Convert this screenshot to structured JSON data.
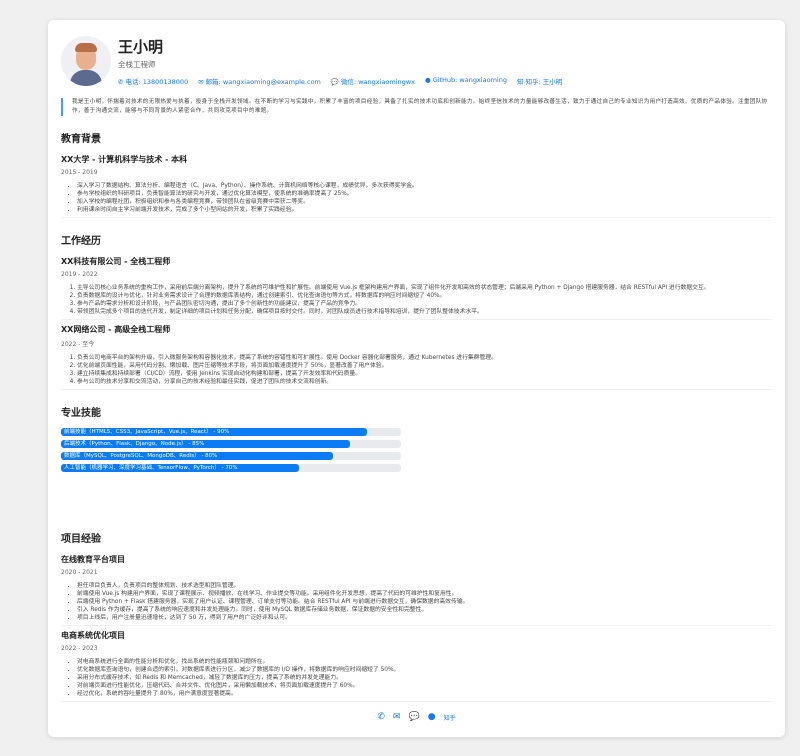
{
  "profile": {
    "name": "王小明",
    "title": "全栈工程师",
    "contacts": [
      {
        "icon": "phone-icon",
        "label": "电话: 13800138000"
      },
      {
        "icon": "email-icon",
        "label": "邮箱: wangxiaoming@example.com"
      },
      {
        "icon": "wechat-icon",
        "label": "微信: wangxiaomingwx"
      },
      {
        "icon": "github-icon",
        "label": "GitHub: wangxiaoming"
      },
      {
        "icon": "zhihu-icon",
        "label": "知乎: 王小明"
      }
    ],
    "summary": "我是王小明，怀揣着对技术的无限热爱与执着，投身于全栈开发领域。在不断的学习与实践中，积累了丰富的项目经验，具备了扎实的技术功底和创新能力。始终坚信技术的力量能够改善生活，致力于通过自己的专业知识为用户打造高效、优质的产品体验。注重团队协作，善于沟通交流，能够与不同背景的人紧密合作，共同攻克项目中的难题。"
  },
  "education": {
    "heading": "教育背景",
    "items": [
      {
        "title": "XX大学 - 计算机科学与技术 - 本科",
        "date": "2015 - 2019",
        "points": [
          "深入学习了数据结构、算法分析、编程语言（C、Java、Python）、操作系统、计算机网络等核心课程，成绩优异，多次获得奖学金。",
          "参与学校组织的科研项目，负责智能算法的研究与开发，通过优化算法模型，使系统的准确率提高了 25%。",
          "加入学校的编程社团，积极组织和参与各类编程竞赛，带领团队在省级竞赛中荣获二等奖。",
          "利用课余时间自主学习前端开发技术，完成了多个小型网站的开发，积累了实践经验。"
        ]
      }
    ]
  },
  "work": {
    "heading": "工作经历",
    "items": [
      {
        "title": "XX科技有限公司 - 全栈工程师",
        "date": "2019 - 2022",
        "points": [
          "主导公司核心业务系统的重构工作，采用前后端分离架构，提升了系统的可维护性和扩展性。前端使用 Vue.js 框架构建用户界面，实现了组件化开发和高效的状态管理；后端采用 Python + Django 搭建服务器，结合 RESTful API 进行数据交互。",
          "负责数据库的设计与优化，针对业务需求设计了合理的数据库表结构，通过创建索引、优化查询语句等方式，将数据库的响应时间缩短了 40%。",
          "参与产品的需求分析和设计阶段，与产品团队密切沟通，提出了多个创新性的功能建议，提高了产品的竞争力。",
          "带领团队完成多个项目的迭代开发，制定详细的项目计划和任务分配，确保项目按时交付。同时，对团队成员进行技术指导和培训，提升了团队整体技术水平。"
        ]
      },
      {
        "title": "XX网络公司 - 高级全栈工程师",
        "date": "2022 - 至今",
        "points": [
          "负责公司电商平台的架构升级，引入微服务架构和容器化技术，提高了系统的容错性和可扩展性。使用 Docker 容器化部署服务，通过 Kubernetes 进行集群管理。",
          "优化前端页面性能，采用代码分割、懒加载、图片压缩等技术手段，将页面加载速度提升了 50%，显著改善了用户体验。",
          "建立持续集成和持续部署（CI/CD）流程，使用 Jenkins 实现自动化构建和部署，提高了开发效率和代码质量。",
          "参与公司的技术分享和交流活动，分享自己的技术经验和最佳实践，促进了团队的技术交流和创新。"
        ]
      }
    ]
  },
  "skills": {
    "heading": "专业技能",
    "items": [
      {
        "label": "前端技能（HTML5、CSS3、JavaScript、Vue.js、React） - 90%",
        "percent": 90
      },
      {
        "label": "后端技术（Python、Flask、Django、Node.js） - 85%",
        "percent": 85
      },
      {
        "label": "数据库（MySQL、PostgreSQL、MongoDB、Redis） - 80%",
        "percent": 80
      },
      {
        "label": "人工智能（机器学习、深度学习基础、TensorFlow、PyTorch） - 70%",
        "percent": 70
      }
    ],
    "color": "#0b7cf6"
  },
  "projects": {
    "heading": "项目经验",
    "items": [
      {
        "title": "在线教育平台项目",
        "date": "2020 - 2021",
        "points": [
          "担任项目负责人，负责项目的整体规划、技术选型和团队管理。",
          "前端使用 Vue.js 构建用户界面，实现了课程展示、视频播放、在线学习、作业提交等功能。采用组件化开发思想，提高了代码的可维护性和复用性。",
          "后端使用 Python + Flask 搭建服务器，实现了用户认证、课程管理、订单支付等功能。结合 RESTful API 与前端进行数据交互，确保数据的高效传输。",
          "引入 Redis 作为缓存，提高了系统的响应速度和并发处理能力。同时，使用 MySQL 数据库存储业务数据，保证数据的安全性和完整性。",
          "项目上线后，用户注册量迅速增长，达到了 50 万，得到了用户的广泛好评和认可。"
        ]
      },
      {
        "title": "电商系统优化项目",
        "date": "2022 - 2023",
        "points": [
          "对电商系统进行全面的性能分析和优化，找出系统的性能瓶颈和问题所在。",
          "优化数据库查询语句，创建合适的索引，对数据库表进行分区，减少了数据库的 I/O 操作，将数据库的响应时间缩短了 50%。",
          "采用分布式缓存技术，如 Redis 和 Memcached，减轻了数据库的压力，提高了系统的并发处理能力。",
          "对前端页面进行性能优化，压缩代码、合并文件、优化图片，采用懒加载技术，将页面加载速度提升了 60%。",
          "经过优化，系统的吞吐量提升了 80%，用户满意度显著提高。"
        ]
      }
    ]
  },
  "footer": {
    "zhihu_label": "知乎"
  }
}
